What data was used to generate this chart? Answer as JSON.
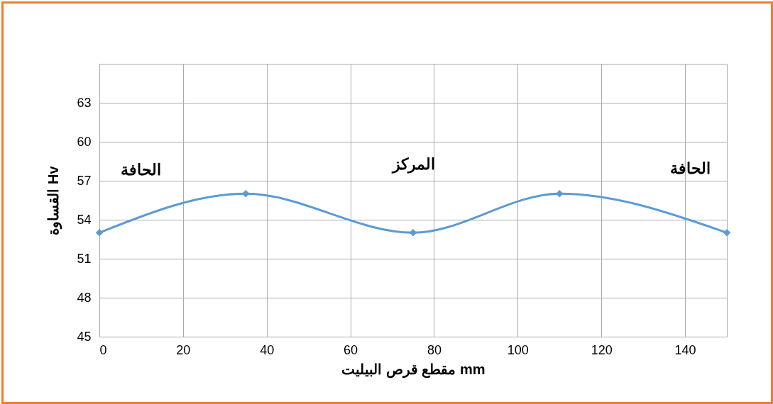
{
  "chart_data": {
    "type": "line",
    "xlabel": "مقطع قرص البيليت mm",
    "ylabel": "القساوة Hv",
    "x": [
      0,
      35,
      75,
      110,
      150
    ],
    "series": [
      {
        "color": "#5b9bd5",
        "values": [
          53,
          56,
          53,
          56,
          53
        ]
      }
    ],
    "xlim": [
      0,
      150
    ],
    "xticks": [
      0,
      20,
      40,
      60,
      80,
      100,
      120,
      140
    ],
    "ylim": [
      45,
      66
    ],
    "yticks": [
      45,
      48,
      51,
      54,
      57,
      60,
      63
    ],
    "grid": true,
    "marker": "diamond",
    "line_style": "solid",
    "annotations": [
      "الحافة",
      "المركز",
      "الحافة"
    ]
  }
}
